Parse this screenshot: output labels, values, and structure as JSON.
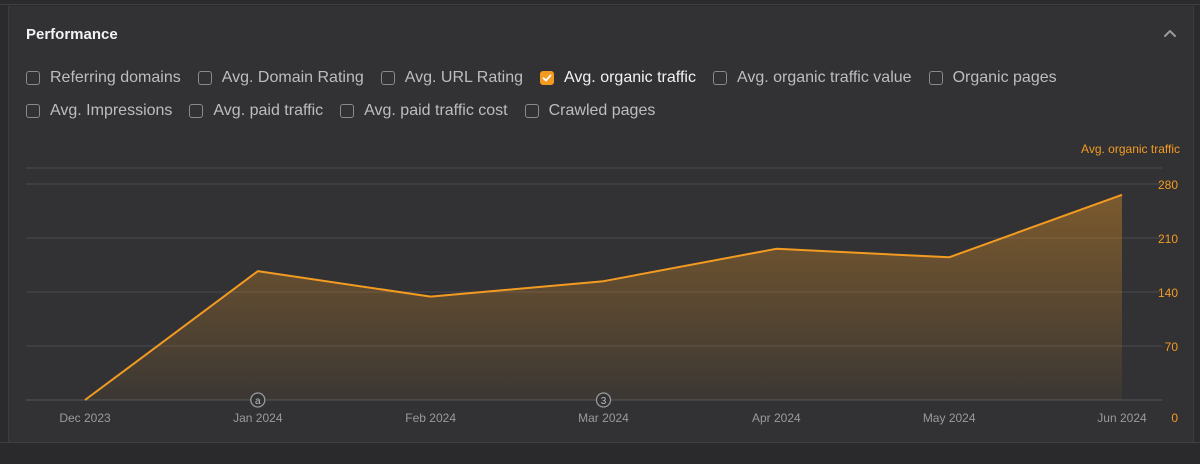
{
  "header": {
    "title": "Performance"
  },
  "metrics": {
    "row1": [
      {
        "label": "Referring domains",
        "checked": false
      },
      {
        "label": "Avg. Domain Rating",
        "checked": false
      },
      {
        "label": "Avg. URL Rating",
        "checked": false
      },
      {
        "label": "Avg. organic traffic",
        "checked": true
      },
      {
        "label": "Avg. organic traffic value",
        "checked": false
      },
      {
        "label": "Organic pages",
        "checked": false
      }
    ],
    "row2": [
      {
        "label": "Avg. Impressions",
        "checked": false
      },
      {
        "label": "Avg. paid traffic",
        "checked": false
      },
      {
        "label": "Avg. paid traffic cost",
        "checked": false
      },
      {
        "label": "Crawled pages",
        "checked": false
      }
    ]
  },
  "colors": {
    "accent": "#f39b21",
    "grid": "#4a4a4e",
    "axis_text": "#9a9a9e"
  },
  "icons": {
    "collapse": "chevron-up-icon",
    "checkbox_checked": "check-icon"
  },
  "chart_data": {
    "type": "area",
    "legend_label": "Avg. organic traffic",
    "legend_placement": "top-right",
    "x": [
      "Dec 2023",
      "Jan 2024",
      "Feb 2024",
      "Mar 2024",
      "Apr 2024",
      "May 2024",
      "Jun 2024"
    ],
    "series": [
      {
        "name": "Avg. organic traffic",
        "values": [
          0,
          167,
          134,
          154,
          196,
          185,
          266
        ]
      }
    ],
    "ylim": [
      0,
      280
    ],
    "yticks": [
      0,
      70,
      140,
      210,
      280
    ],
    "ytick_side": "right",
    "grid": true,
    "annotations": [
      {
        "x": "Jan 2024",
        "label": "a"
      },
      {
        "x": "Mar 2024",
        "label": "3"
      }
    ]
  }
}
